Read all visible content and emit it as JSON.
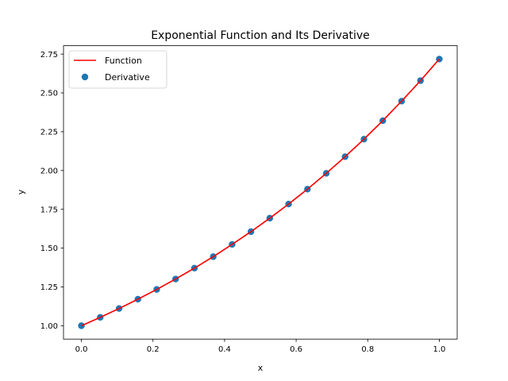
{
  "chart_data": {
    "type": "line",
    "title": "Exponential Function and Its Derivative",
    "xlabel": "x",
    "ylabel": "y",
    "xlim": [
      -0.05,
      1.05
    ],
    "ylim": [
      0.914,
      2.804
    ],
    "xticks": [
      0.0,
      0.2,
      0.4,
      0.6,
      0.8,
      1.0
    ],
    "xtick_labels": [
      "0.0",
      "0.2",
      "0.4",
      "0.6",
      "0.8",
      "1.0"
    ],
    "yticks": [
      1.0,
      1.25,
      1.5,
      1.75,
      2.0,
      2.25,
      2.5,
      2.75
    ],
    "ytick_labels": [
      "1.00",
      "1.25",
      "1.50",
      "1.75",
      "2.00",
      "2.25",
      "2.50",
      "2.75"
    ],
    "grid": false,
    "legend_position": "top-left",
    "x": [
      0.0,
      0.0526,
      0.1053,
      0.1579,
      0.2105,
      0.2632,
      0.3158,
      0.3684,
      0.4211,
      0.4737,
      0.5263,
      0.5789,
      0.6316,
      0.6842,
      0.7368,
      0.7895,
      0.8421,
      0.8947,
      0.9474,
      1.0
    ],
    "series": [
      {
        "name": "Function",
        "kind": "line",
        "color": "#ff0000",
        "values": [
          1.0,
          1.054,
          1.111,
          1.171,
          1.234,
          1.301,
          1.371,
          1.445,
          1.524,
          1.606,
          1.693,
          1.784,
          1.88,
          1.982,
          2.089,
          2.202,
          2.321,
          2.447,
          2.579,
          2.718
        ]
      },
      {
        "name": "Derivative",
        "kind": "scatter",
        "color": "#1f77b4",
        "values": [
          1.0,
          1.054,
          1.111,
          1.171,
          1.234,
          1.301,
          1.371,
          1.445,
          1.524,
          1.606,
          1.693,
          1.784,
          1.88,
          1.982,
          2.089,
          2.202,
          2.321,
          2.447,
          2.579,
          2.718
        ]
      }
    ]
  }
}
